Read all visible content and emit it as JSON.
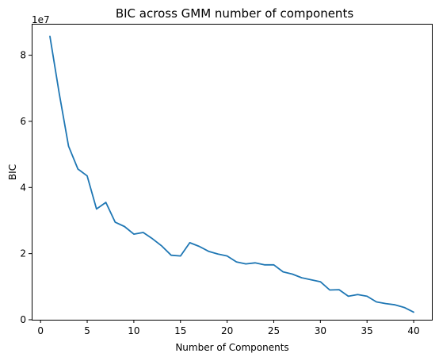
{
  "chart_data": {
    "type": "line",
    "title": "BIC across GMM number of components",
    "xlabel": "Number of Components",
    "ylabel": "BIC",
    "y_offset_label": "1e7",
    "xlim": [
      -0.95,
      41.95
    ],
    "ylim": [
      -0.0,
      8.95
    ],
    "xticks": [
      0,
      5,
      10,
      15,
      20,
      25,
      30,
      35,
      40
    ],
    "yticks": [
      0,
      2,
      4,
      6,
      8
    ],
    "xtick_labels": [
      "0",
      "5",
      "10",
      "15",
      "20",
      "25",
      "30",
      "35",
      "40"
    ],
    "ytick_labels": [
      "0",
      "2",
      "4",
      "6",
      "8"
    ],
    "grid": false,
    "line_color": "#1f77b4",
    "series": [
      {
        "x": [
          1,
          2,
          3,
          4,
          5,
          6,
          7,
          8,
          9,
          10,
          11,
          12,
          13,
          14,
          15,
          16,
          17,
          18,
          19,
          20,
          21,
          22,
          23,
          24,
          25,
          26,
          27,
          28,
          29,
          30,
          31,
          32,
          33,
          34,
          35,
          36,
          37,
          38,
          39,
          40
        ],
        "values": [
          8.57,
          6.85,
          5.25,
          4.56,
          4.35,
          3.35,
          3.55,
          2.95,
          2.82,
          2.59,
          2.64,
          2.45,
          2.23,
          1.95,
          1.93,
          2.33,
          2.22,
          2.07,
          1.99,
          1.93,
          1.75,
          1.69,
          1.72,
          1.66,
          1.66,
          1.45,
          1.38,
          1.27,
          1.21,
          1.15,
          0.9,
          0.91,
          0.71,
          0.76,
          0.71,
          0.54,
          0.49,
          0.45,
          0.37,
          0.23
        ]
      }
    ]
  }
}
